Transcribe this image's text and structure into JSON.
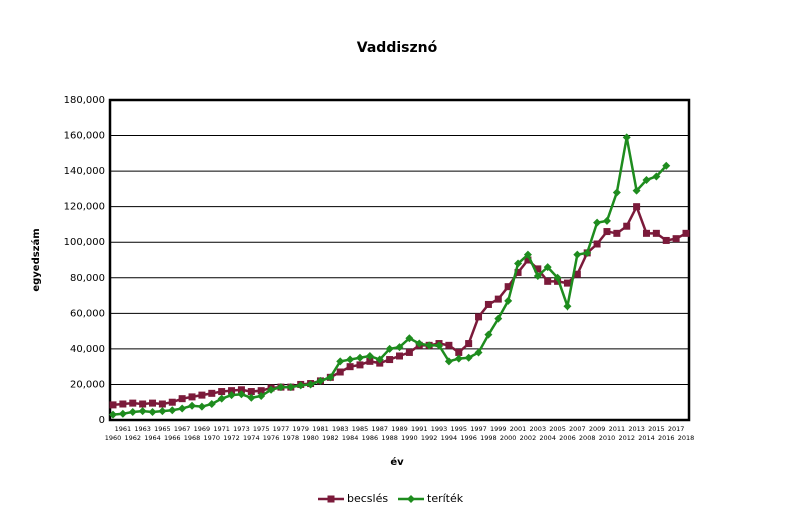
{
  "chart_data": {
    "type": "line",
    "title": "Vaddisznó",
    "xlabel": "év",
    "ylabel": "egyedszám",
    "categories": [
      "1960",
      "1961",
      "1962",
      "1963",
      "1964",
      "1965",
      "1966",
      "1967",
      "1968",
      "1969",
      "1970",
      "1971",
      "1972",
      "1973",
      "1974",
      "1975",
      "1976",
      "1977",
      "1978",
      "1979",
      "1980",
      "1981",
      "1982",
      "1983",
      "1984",
      "1985",
      "1986",
      "1987",
      "1988",
      "1989",
      "1990",
      "1991",
      "1992",
      "1993",
      "1994",
      "1995",
      "1996",
      "1997",
      "1998",
      "1999",
      "2000",
      "2001",
      "2002",
      "2003",
      "2004",
      "2005",
      "2006",
      "2007",
      "2008",
      "2009",
      "2010",
      "2011",
      "2012",
      "2013",
      "2014",
      "2015",
      "2016",
      "2017",
      "2018"
    ],
    "series": [
      {
        "name": "becslés",
        "color": "#7b1a3a",
        "marker": "square",
        "values": [
          8500,
          9000,
          9500,
          9000,
          9500,
          9000,
          10000,
          12000,
          13000,
          14000,
          15000,
          16000,
          16500,
          17000,
          16000,
          16500,
          18000,
          18500,
          18500,
          20000,
          20500,
          22000,
          24000,
          27000,
          30000,
          31000,
          33000,
          32000,
          34000,
          36000,
          38000,
          42000,
          42000,
          43000,
          42000,
          38000,
          43000,
          58000,
          65000,
          68000,
          75000,
          83000,
          90000,
          85000,
          78000,
          78000,
          77000,
          82000,
          94000,
          99000,
          106000,
          105000,
          109000,
          120000,
          105000,
          105000,
          101000,
          102000,
          105000
        ]
      },
      {
        "name": "teríték",
        "color": "#1e8c1e",
        "marker": "diamond",
        "values": [
          3000,
          3500,
          4500,
          5000,
          4500,
          5000,
          5500,
          6500,
          8000,
          7500,
          9000,
          12000,
          14000,
          14500,
          12500,
          13500,
          17000,
          18500,
          18500,
          19500,
          20000,
          22000,
          24000,
          33000,
          34000,
          35000,
          36000,
          34000,
          40000,
          41000,
          46000,
          43000,
          42000,
          42000,
          33000,
          34500,
          35000,
          38000,
          48000,
          57000,
          67000,
          88000,
          93000,
          81000,
          86000,
          80000,
          64000,
          93000,
          94000,
          111000,
          112000,
          128000,
          159000,
          129000,
          135000,
          137000,
          143000,
          null,
          null
        ]
      }
    ],
    "ylim": [
      0,
      180000
    ],
    "yticks": [
      0,
      {
        "value": 20000,
        "label": "20,000"
      },
      {
        "value": 40000,
        "label": "40,000"
      },
      {
        "value": 60000,
        "label": "60,000"
      },
      {
        "value": 80000,
        "label": "80,000"
      },
      {
        "value": 100000,
        "label": "100,000"
      },
      {
        "value": 120000,
        "label": "120,000"
      },
      {
        "value": 140000,
        "label": "140,000"
      },
      {
        "value": 160000,
        "label": "160,000"
      },
      {
        "value": 180000,
        "label": "180,000"
      }
    ],
    "grid": true,
    "legend": "bottom"
  }
}
